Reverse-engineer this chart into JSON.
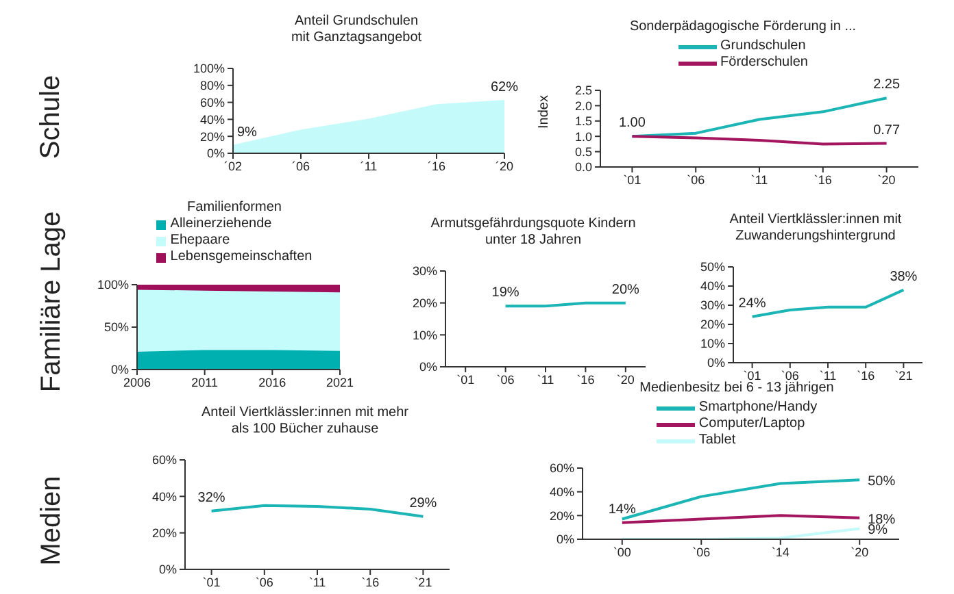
{
  "chart_data": [
    {
      "type": "other",
      "title": "Schule"
    },
    {
      "type": "area",
      "title": "Anteil Grundschulen\nmit Ganztagsangebot",
      "categories": [
        "´02",
        "´06",
        "´11",
        "´16",
        "´20"
      ],
      "values": [
        9,
        27,
        40,
        57,
        62
      ],
      "color": "#c4fafa",
      "value_labels": [
        "9%",
        null,
        null,
        null,
        "62%"
      ],
      "ylim": [
        0,
        100
      ],
      "yticks": [
        {
          "value": 0,
          "label": "0%"
        },
        {
          "value": 20,
          "label": "20%"
        },
        {
          "value": 40,
          "label": "40%"
        },
        {
          "value": 60,
          "label": "60%"
        },
        {
          "value": 80,
          "label": "80%"
        },
        {
          "value": 100,
          "label": "100%"
        }
      ]
    },
    {
      "type": "line",
      "title": "Sonderpädagogische Förderung in ...",
      "ylabel": "Index",
      "categories": [
        "`01",
        "`06",
        "`11",
        "`16",
        "`20"
      ],
      "legend": "top",
      "ylim": [
        0,
        2.5
      ],
      "yticks": [
        {
          "value": 0,
          "label": "0.0"
        },
        {
          "value": 0.5,
          "label": "0.5"
        },
        {
          "value": 1,
          "label": "1.0"
        },
        {
          "value": 1.5,
          "label": "1.5"
        },
        {
          "value": 2,
          "label": "2.0"
        },
        {
          "value": 2.5,
          "label": "2.5"
        }
      ],
      "series": [
        {
          "name": "Grundschulen",
          "color": "#1bb5b5",
          "values": [
            1.0,
            1.1,
            1.55,
            1.8,
            2.25
          ],
          "value_labels": [
            "1.00",
            null,
            null,
            null,
            "2.25"
          ]
        },
        {
          "name": "Förderschulen",
          "color": "#a3155e",
          "values": [
            1.0,
            0.95,
            0.87,
            0.75,
            0.77
          ],
          "value_labels": [
            null,
            null,
            null,
            null,
            "0.77"
          ]
        }
      ]
    },
    {
      "type": "other",
      "title": "Familiäre Lage"
    },
    {
      "type": "area",
      "stacked": true,
      "legend": "top",
      "legend_title": "Familienformen",
      "x": [
        2006,
        2011,
        2016,
        2021
      ],
      "xlim": [
        2006,
        2021
      ],
      "xticks": [
        2006,
        2011,
        2016,
        2021
      ],
      "ylim": [
        0,
        100
      ],
      "yticks": [
        {
          "value": 0,
          "label": "0%"
        },
        {
          "value": 50,
          "label": "50%"
        },
        {
          "value": 100,
          "label": "100%"
        }
      ],
      "series": [
        {
          "name": "Alleinerziehende",
          "color": "#00b0b0",
          "values": [
            21,
            23,
            23,
            22
          ]
        },
        {
          "name": "Ehepaare",
          "color": "#c4fcfc",
          "values": [
            73,
            70,
            69,
            69
          ]
        },
        {
          "name": "Lebensgemeinschaften",
          "color": "#a0105a",
          "values": [
            6,
            7,
            8,
            9
          ]
        }
      ]
    },
    {
      "type": "line",
      "title": "Armutsgefährdungsquote Kindern\nunter 18 Jahren",
      "categories": [
        "`01",
        "`06",
        "`11",
        "`16",
        "`20"
      ],
      "values": [
        null,
        19,
        19,
        20,
        20
      ],
      "color": "#1bb5b5",
      "value_labels": [
        null,
        "19%",
        null,
        null,
        "20%"
      ],
      "ylim": [
        0,
        30
      ],
      "yticks": [
        {
          "value": 0,
          "label": "0%"
        },
        {
          "value": 10,
          "label": "10%"
        },
        {
          "value": 20,
          "label": "20%"
        },
        {
          "value": 30,
          "label": "30%"
        }
      ]
    },
    {
      "type": "line",
      "title": "Anteil Viertklässler:innen mit\nZuwanderungshintergrund",
      "categories": [
        "`01",
        "`06",
        "`11",
        "`16",
        "`21"
      ],
      "values": [
        24,
        27.5,
        29,
        29,
        38
      ],
      "color": "#1bb5b5",
      "value_labels": [
        "24%",
        null,
        null,
        null,
        "38%"
      ],
      "ylim": [
        0,
        50
      ],
      "yticks": [
        {
          "value": 0,
          "label": "0%"
        },
        {
          "value": 10,
          "label": "10%"
        },
        {
          "value": 20,
          "label": "20%"
        },
        {
          "value": 30,
          "label": "30%"
        },
        {
          "value": 40,
          "label": "40%"
        },
        {
          "value": 50,
          "label": "50%"
        }
      ]
    },
    {
      "type": "other",
      "title": "Medien"
    },
    {
      "type": "line",
      "title": "Anteil Viertklässler:innen mit mehr\nals 100 Bücher zuhause",
      "categories": [
        "`01",
        "`06",
        "`11",
        "`16",
        "`21"
      ],
      "values": [
        32,
        35,
        34.5,
        33,
        29
      ],
      "color": "#1bb5b5",
      "value_labels": [
        "32%",
        null,
        null,
        null,
        "29%"
      ],
      "ylim": [
        0,
        60
      ],
      "yticks": [
        {
          "value": 0,
          "label": "0%"
        },
        {
          "value": 20,
          "label": "20%"
        },
        {
          "value": 40,
          "label": "40%"
        },
        {
          "value": 60,
          "label": "60%"
        }
      ]
    },
    {
      "type": "line",
      "title": "Medienbesitz bei 6 - 13 jährigen",
      "categories": [
        "`00",
        "`06",
        "`14",
        "`20"
      ],
      "legend": "top",
      "ylim": [
        0,
        60
      ],
      "yticks": [
        {
          "value": 0,
          "label": "0%"
        },
        {
          "value": 20,
          "label": "20%"
        },
        {
          "value": 40,
          "label": "40%"
        },
        {
          "value": 60,
          "label": "60%"
        }
      ],
      "series": [
        {
          "name": "Smartphone/Handy",
          "color": "#1bb5b5",
          "values": [
            17,
            36,
            47,
            50
          ],
          "value_labels": [
            null,
            null,
            null,
            "50%"
          ]
        },
        {
          "name": "Computer/Laptop",
          "color": "#a3155e",
          "values": [
            14,
            17,
            20,
            18
          ],
          "value_labels": [
            "14%",
            null,
            null,
            "18%"
          ]
        },
        {
          "name": "Tablet",
          "color": "#c4fafa",
          "values": [
            0,
            0,
            1,
            9
          ],
          "value_labels": [
            null,
            null,
            null,
            "9%"
          ]
        }
      ]
    }
  ]
}
